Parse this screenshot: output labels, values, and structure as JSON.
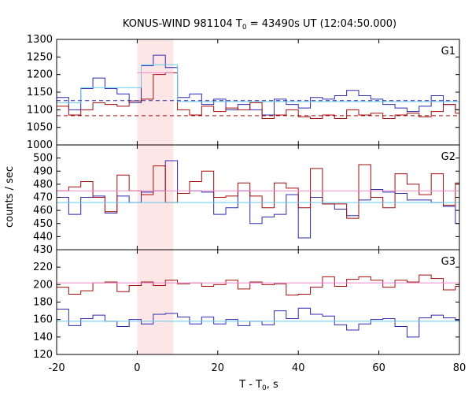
{
  "chart_data": {
    "type": "line",
    "title_prefix": "KONUS-WIND 981104 T",
    "title_sub": "0",
    "title_suffix": " = 43490s UT (12:04:50.000)",
    "xlabel_prefix": "T - T",
    "xlabel_sub": "0",
    "xlabel_suffix": ", s",
    "ylabel": "counts / sec",
    "xlim": [
      -20,
      80
    ],
    "xticks": [
      "-20",
      "0",
      "20",
      "40",
      "60",
      "80"
    ],
    "xtick_values": [
      -20,
      0,
      20,
      40,
      60,
      80
    ],
    "highlight": {
      "from": 0,
      "to": 9,
      "color": "#fde6e6"
    },
    "colors": {
      "blue": "#2b2bb0",
      "red": "#a50d0d",
      "cyan": "#66ccee",
      "pink": "#ee88cc"
    },
    "panels": [
      {
        "label": "G1",
        "ylim": [
          1000,
          1300
        ],
        "yticks": [
          "1300",
          "1250",
          "1200",
          "1150",
          "1100",
          "1050",
          "1000"
        ],
        "ytick_values": [
          1300,
          1250,
          1200,
          1150,
          1100,
          1050,
          1000
        ],
        "bins_x": [
          -20,
          -17,
          -14,
          -11,
          -8,
          -5,
          -2,
          1,
          4,
          7,
          10,
          13,
          16,
          19,
          22,
          25,
          28,
          31,
          34,
          37,
          40,
          43,
          46,
          49,
          52,
          55,
          58,
          61,
          64,
          67,
          70,
          73,
          76,
          79,
          80
        ],
        "blue": [
          1135,
          1100,
          1160,
          1190,
          1160,
          1145,
          1120,
          1225,
          1255,
          1220,
          1135,
          1145,
          1115,
          1130,
          1100,
          1115,
          1100,
          1085,
          1130,
          1115,
          1105,
          1135,
          1130,
          1140,
          1155,
          1140,
          1130,
          1115,
          1105,
          1095,
          1110,
          1140,
          1115,
          1100
        ],
        "red": [
          1110,
          1085,
          1100,
          1120,
          1115,
          1110,
          1125,
          1130,
          1200,
          1205,
          1100,
          1085,
          1110,
          1095,
          1105,
          1100,
          1120,
          1075,
          1085,
          1100,
          1080,
          1075,
          1085,
          1075,
          1100,
          1085,
          1090,
          1075,
          1085,
          1090,
          1080,
          1095,
          1115,
          1090
        ],
        "cyan_segments": [
          [
            -20,
            -14,
            1120
          ],
          [
            -14,
            1,
            1163
          ],
          [
            1,
            10,
            1228
          ],
          [
            10,
            80,
            1123
          ]
        ],
        "pink_segments": [
          [
            0,
            9,
            1205
          ]
        ],
        "dash_blue": 1126,
        "dash_red": 1083
      },
      {
        "label": "G2",
        "ylim": [
          430,
          510
        ],
        "yticks": [
          "500",
          "490",
          "480",
          "470",
          "460",
          "450",
          "440",
          "430"
        ],
        "ytick_values": [
          500,
          490,
          480,
          470,
          460,
          450,
          440,
          430
        ],
        "bins_x": [
          -20,
          -17,
          -14,
          -11,
          -8,
          -5,
          -2,
          1,
          4,
          7,
          10,
          13,
          16,
          19,
          22,
          25,
          28,
          31,
          34,
          37,
          40,
          43,
          46,
          49,
          52,
          55,
          58,
          61,
          64,
          67,
          70,
          73,
          76,
          79,
          80
        ],
        "blue": [
          470,
          457,
          470,
          471,
          458,
          471,
          466,
          474,
          475,
          498,
          473,
          475,
          474,
          457,
          462,
          475,
          450,
          455,
          457,
          472,
          439,
          470,
          465,
          461,
          456,
          468,
          476,
          474,
          473,
          468,
          468,
          466,
          463,
          450
        ],
        "red": [
          475,
          478,
          482,
          470,
          459,
          487,
          475,
          472,
          494,
          466,
          473,
          482,
          490,
          470,
          471,
          481,
          471,
          462,
          481,
          477,
          462,
          492,
          465,
          465,
          454,
          495,
          470,
          462,
          488,
          480,
          472,
          488,
          464,
          481
        ],
        "cyan_segments": [
          [
            -20,
            80,
            466
          ]
        ],
        "pink_segments": [
          [
            -20,
            80,
            475
          ]
        ]
      },
      {
        "label": "G3",
        "ylim": [
          120,
          240
        ],
        "yticks": [
          "220",
          "200",
          "180",
          "160",
          "140",
          "120"
        ],
        "ytick_values": [
          220,
          200,
          180,
          160,
          140,
          120
        ],
        "bins_x": [
          -20,
          -17,
          -14,
          -11,
          -8,
          -5,
          -2,
          1,
          4,
          7,
          10,
          13,
          16,
          19,
          22,
          25,
          28,
          31,
          34,
          37,
          40,
          43,
          46,
          49,
          52,
          55,
          58,
          61,
          64,
          67,
          70,
          73,
          76,
          79,
          80
        ],
        "blue": [
          172,
          153,
          161,
          165,
          158,
          152,
          160,
          155,
          166,
          167,
          163,
          155,
          163,
          155,
          160,
          153,
          158,
          154,
          170,
          161,
          173,
          166,
          164,
          154,
          148,
          155,
          160,
          161,
          152,
          140,
          162,
          165,
          162,
          159
        ],
        "red": [
          197,
          189,
          193,
          202,
          203,
          192,
          199,
          203,
          199,
          205,
          201,
          202,
          198,
          200,
          205,
          195,
          203,
          200,
          201,
          188,
          189,
          197,
          209,
          198,
          206,
          209,
          205,
          197,
          205,
          203,
          211,
          207,
          194,
          198
        ],
        "cyan_segments": [
          [
            -20,
            80,
            158
          ]
        ],
        "pink_segments": [
          [
            -20,
            80,
            202
          ]
        ]
      }
    ]
  }
}
